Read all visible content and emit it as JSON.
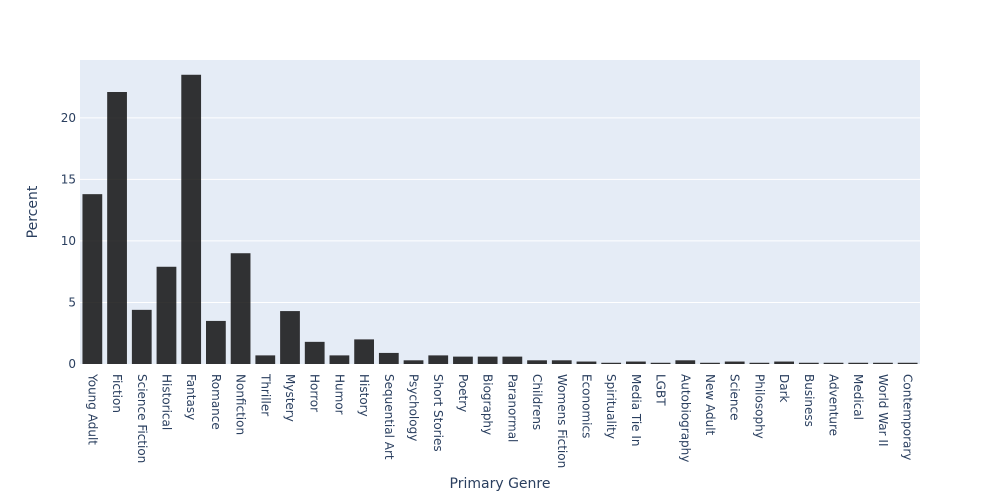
{
  "chart_data": {
    "type": "bar",
    "xlabel": "Primary Genre",
    "ylabel": "Percent",
    "ylim": [
      0,
      24.7
    ],
    "yticks": [
      0,
      5,
      10,
      15,
      20
    ],
    "grid": true,
    "colors": {
      "plot_background": "#e5ecf6",
      "grid": "#ffffff",
      "bar": "#111111",
      "text": "#2a3f5f"
    },
    "categories": [
      "Young Adult",
      "Fiction",
      "Science Fiction",
      "Historical",
      "Fantasy",
      "Romance",
      "Nonfiction",
      "Thriller",
      "Mystery",
      "Horror",
      "Humor",
      "History",
      "Sequential Art",
      "Psychology",
      "Short Stories",
      "Poetry",
      "Biography",
      "Paranormal",
      "Childrens",
      "Womens Fiction",
      "Economics",
      "Spirituality",
      "Media Tie In",
      "LGBT",
      "Autobiography",
      "New Adult",
      "Science",
      "Philosophy",
      "Dark",
      "Business",
      "Adventure",
      "Medical",
      "World War II",
      "Contemporary"
    ],
    "values": [
      13.8,
      22.1,
      4.4,
      7.9,
      23.5,
      3.5,
      9.0,
      0.7,
      4.3,
      1.8,
      0.7,
      2.0,
      0.9,
      0.3,
      0.7,
      0.6,
      0.6,
      0.6,
      0.3,
      0.3,
      0.2,
      0.1,
      0.2,
      0.1,
      0.3,
      0.1,
      0.2,
      0.1,
      0.2,
      0.1,
      0.1,
      0.1,
      0.1,
      0.1
    ]
  }
}
